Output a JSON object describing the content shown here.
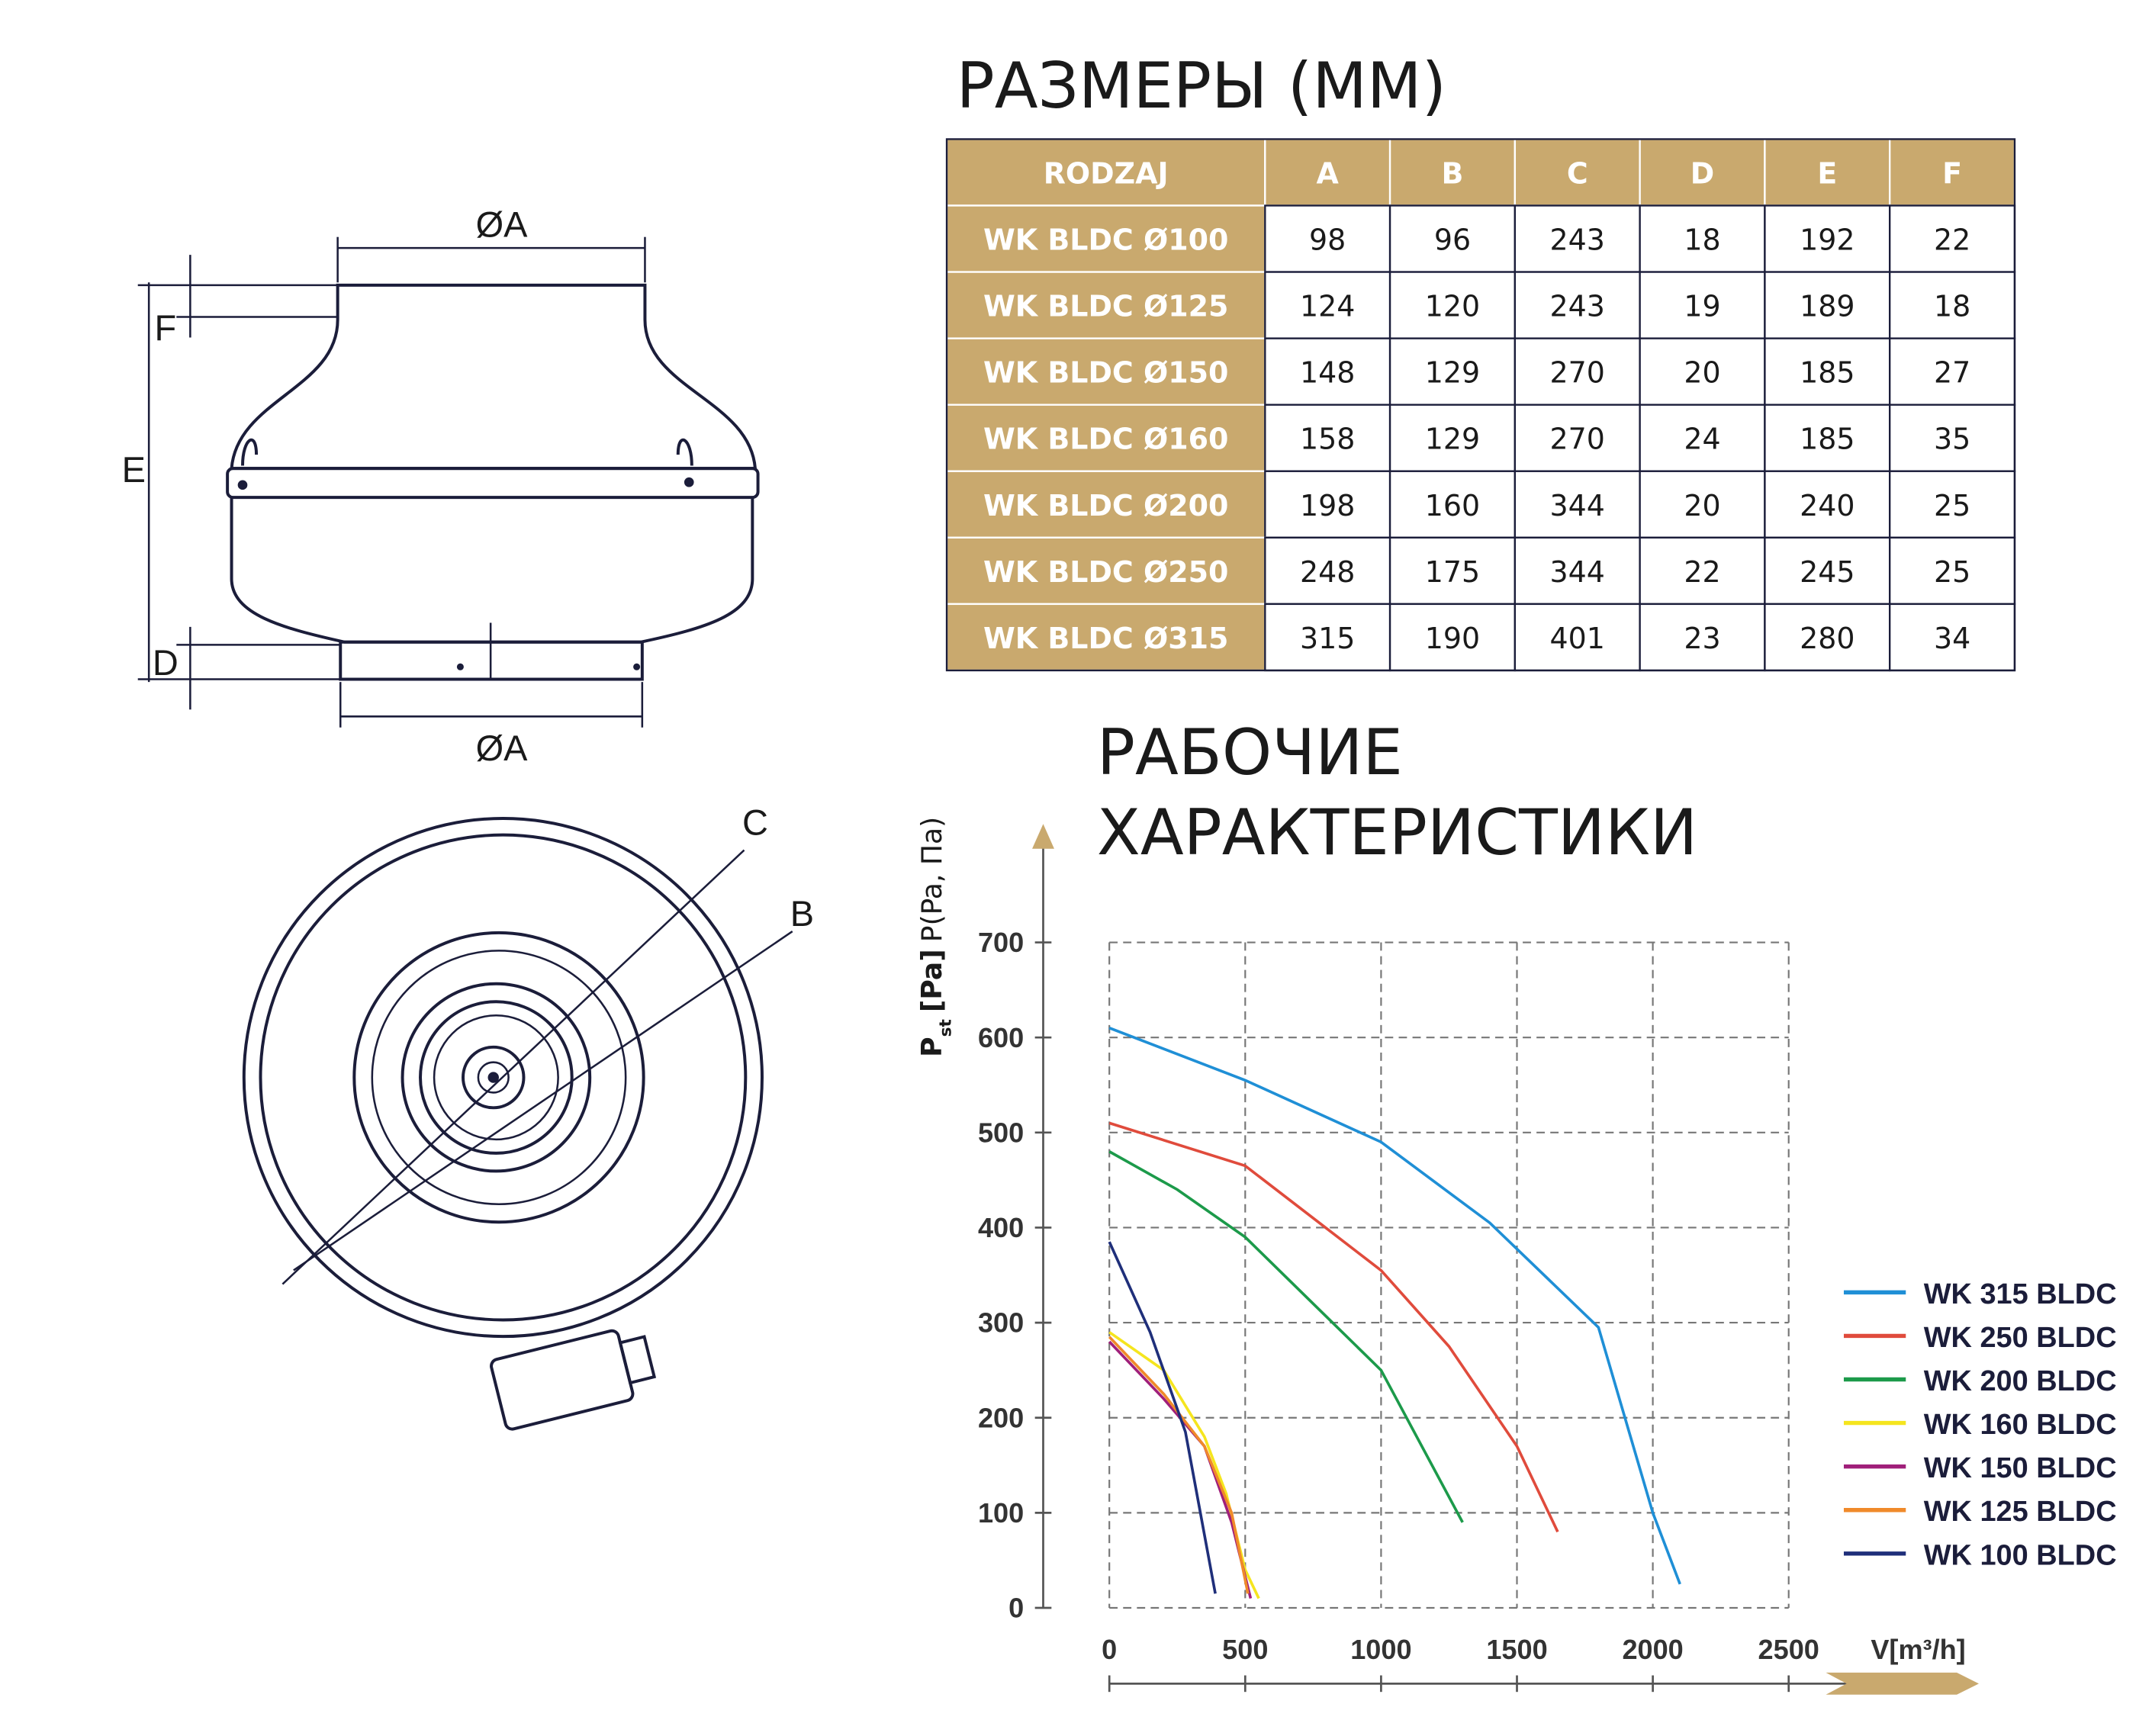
{
  "dimensions_title": "РАЗМЕРЫ (MM)",
  "drawing": {
    "top_width": "ØA",
    "bottom_width": "ØA",
    "f": "F",
    "e": "E",
    "d": "D",
    "c": "C",
    "b": "B"
  },
  "table": {
    "header": [
      "RODZAJ",
      "A",
      "B",
      "C",
      "D",
      "E",
      "F"
    ],
    "rows": [
      [
        "WK BLDC Ø100",
        98,
        96,
        243,
        18,
        192,
        22
      ],
      [
        "WK BLDC Ø125",
        124,
        120,
        243,
        19,
        189,
        18
      ],
      [
        "WK BLDC Ø150",
        148,
        129,
        270,
        20,
        185,
        27
      ],
      [
        "WK BLDC Ø160",
        158,
        129,
        270,
        24,
        185,
        35
      ],
      [
        "WK BLDC Ø200",
        198,
        160,
        344,
        20,
        240,
        25
      ],
      [
        "WK BLDC Ø250",
        248,
        175,
        344,
        22,
        245,
        25
      ],
      [
        "WK BLDC Ø315",
        315,
        190,
        401,
        23,
        280,
        34
      ]
    ]
  },
  "chart_data": {
    "type": "line",
    "title_lines": [
      "РАБОЧИЕ",
      "ХАРАКТЕРИСТИКИ"
    ],
    "ylabel": {
      "symbol": "P",
      "subscript": "st",
      "unit": "[Pa]",
      "text": "P(Pa, Па)"
    },
    "xlabel": "V[m³/h]",
    "xlim": [
      0,
      2500
    ],
    "ylim": [
      0,
      700
    ],
    "xticks": [
      0,
      500,
      1000,
      1500,
      2000,
      2500
    ],
    "yticks": [
      0,
      100,
      200,
      300,
      400,
      500,
      600,
      700
    ],
    "grid": true,
    "legend": "right",
    "series": [
      {
        "name": "WK 315 BLDC",
        "color": "#1f8fd6",
        "x": [
          0,
          500,
          1000,
          1400,
          1800,
          2000,
          2100
        ],
        "values": [
          610,
          555,
          490,
          405,
          295,
          100,
          25
        ]
      },
      {
        "name": "WK 250 BLDC",
        "color": "#e04b3c",
        "x": [
          0,
          500,
          1000,
          1250,
          1500,
          1650
        ],
        "values": [
          510,
          465,
          355,
          275,
          170,
          80
        ]
      },
      {
        "name": "WK 200 BLDC",
        "color": "#1c9a4a",
        "x": [
          0,
          250,
          500,
          750,
          1000,
          1300
        ],
        "values": [
          480,
          440,
          390,
          320,
          250,
          90
        ]
      },
      {
        "name": "WK 160 BLDC",
        "color": "#f5e51e",
        "x": [
          0,
          200,
          350,
          430,
          500,
          550
        ],
        "values": [
          290,
          250,
          180,
          120,
          40,
          10
        ]
      },
      {
        "name": "WK 150 BLDC",
        "color": "#a01f7a",
        "x": [
          0,
          200,
          350,
          450,
          520
        ],
        "values": [
          280,
          220,
          170,
          90,
          10
        ]
      },
      {
        "name": "WK 125 BLDC",
        "color": "#f08a2a",
        "x": [
          0,
          200,
          350,
          450,
          510
        ],
        "values": [
          285,
          225,
          170,
          100,
          15
        ]
      },
      {
        "name": "WK 100 BLDC",
        "color": "#1f2f7a",
        "x": [
          0,
          150,
          280,
          390
        ],
        "values": [
          385,
          290,
          185,
          15
        ]
      }
    ]
  }
}
